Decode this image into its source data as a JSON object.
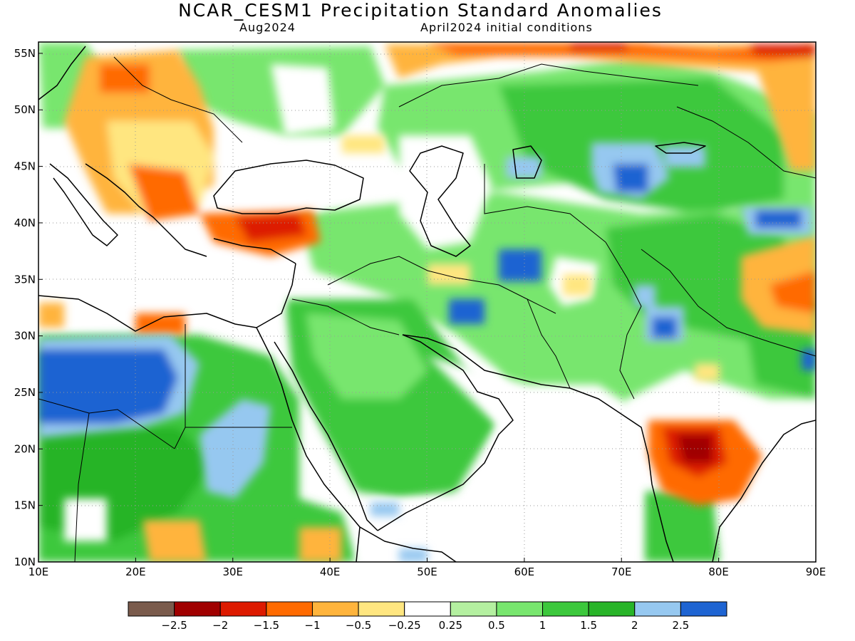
{
  "title": "NCAR_CESM1 Precipitation Standard Anomalies",
  "subtitle_left": "Aug2024",
  "subtitle_right": "April2024 initial conditions",
  "map": {
    "lon_range": [
      10,
      90
    ],
    "lat_range": [
      10,
      56
    ],
    "lat_ticks": [
      {
        "value": 55,
        "label": "55N"
      },
      {
        "value": 50,
        "label": "50N"
      },
      {
        "value": 45,
        "label": "45N"
      },
      {
        "value": 40,
        "label": "40N"
      },
      {
        "value": 35,
        "label": "35N"
      },
      {
        "value": 30,
        "label": "30N"
      },
      {
        "value": 25,
        "label": "25N"
      },
      {
        "value": 20,
        "label": "20N"
      },
      {
        "value": 15,
        "label": "15N"
      },
      {
        "value": 10,
        "label": "10N"
      }
    ],
    "lon_ticks": [
      {
        "value": 10,
        "label": "10E"
      },
      {
        "value": 20,
        "label": "20E"
      },
      {
        "value": 30,
        "label": "30E"
      },
      {
        "value": 40,
        "label": "40E"
      },
      {
        "value": 50,
        "label": "50E"
      },
      {
        "value": 60,
        "label": "60E"
      },
      {
        "value": 70,
        "label": "70E"
      },
      {
        "value": 80,
        "label": "80E"
      },
      {
        "value": 90,
        "label": "90E"
      }
    ]
  },
  "legend": {
    "colors": [
      "#7a5b4c",
      "#a00000",
      "#dd1a00",
      "#ff6a00",
      "#ffb43c",
      "#ffe680",
      "#ffffff",
      "#b4f0a0",
      "#78e66e",
      "#3cc83c",
      "#28b428",
      "#96c8f0",
      "#1e64d2"
    ],
    "labels": [
      "−2.5",
      "−2",
      "−1.5",
      "−1",
      "−0.5",
      "−0.25",
      "0.25",
      "0.5",
      "1",
      "1.5",
      "2",
      "2.5"
    ]
  }
}
